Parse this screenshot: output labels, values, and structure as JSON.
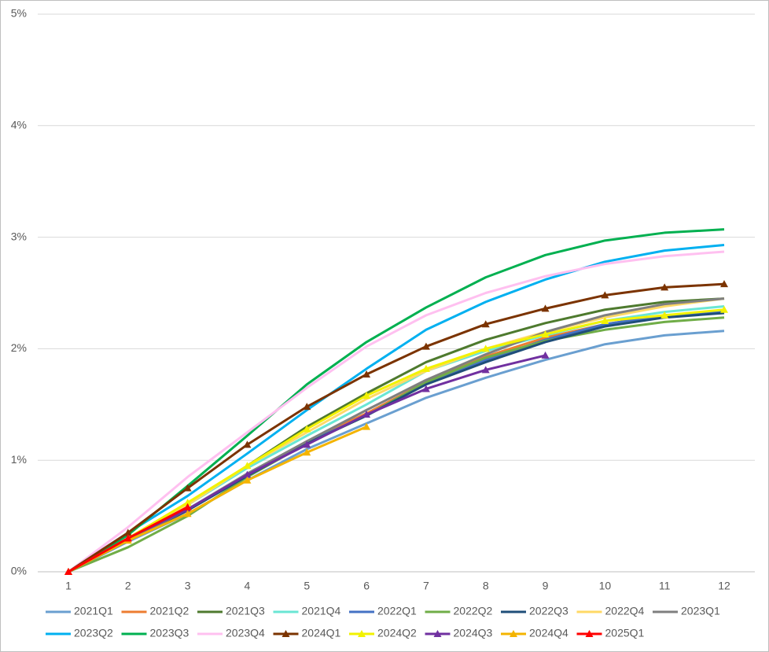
{
  "chart_data": {
    "type": "line",
    "x": [
      1,
      2,
      3,
      4,
      5,
      6,
      7,
      8,
      9,
      10,
      11,
      12
    ],
    "xlim": [
      1,
      12
    ],
    "xticks": [
      1,
      2,
      3,
      4,
      5,
      6,
      7,
      8,
      9,
      10,
      11,
      12
    ],
    "ylim": [
      0,
      5
    ],
    "yticks": [
      {
        "value": 0,
        "label": "0%"
      },
      {
        "value": 1,
        "label": "1%"
      },
      {
        "value": 2,
        "label": "2%"
      },
      {
        "value": 3,
        "label": "3%"
      },
      {
        "value": 4,
        "label": "4%"
      },
      {
        "value": 5,
        "label": "5%"
      }
    ],
    "grid": true,
    "legend": "bottom",
    "series": [
      {
        "name": "2021Q1",
        "color": "#6a9fd0",
        "marker": "none",
        "values": [
          0,
          0.27,
          0.52,
          0.82,
          1.1,
          1.33,
          1.56,
          1.74,
          1.9,
          2.04,
          2.12,
          2.16
        ]
      },
      {
        "name": "2021Q2",
        "color": "#ed7d31",
        "marker": "none",
        "values": [
          0,
          0.28,
          0.55,
          0.87,
          1.17,
          1.42,
          1.7,
          1.93,
          2.1,
          2.22,
          2.3,
          2.33
        ]
      },
      {
        "name": "2021Q3",
        "color": "#4e7a2e",
        "marker": "none",
        "values": [
          0,
          0.3,
          0.6,
          0.95,
          1.3,
          1.6,
          1.88,
          2.08,
          2.23,
          2.35,
          2.42,
          2.45
        ]
      },
      {
        "name": "2021Q4",
        "color": "#6ae6d4",
        "marker": "none",
        "values": [
          0,
          0.3,
          0.6,
          0.93,
          1.22,
          1.5,
          1.8,
          1.98,
          2.12,
          2.25,
          2.33,
          2.38
        ]
      },
      {
        "name": "2022Q1",
        "color": "#4472c4",
        "marker": "none",
        "values": [
          0,
          0.28,
          0.55,
          0.88,
          1.16,
          1.4,
          1.7,
          1.9,
          2.08,
          2.22,
          2.3,
          2.33
        ]
      },
      {
        "name": "2022Q2",
        "color": "#70ad47",
        "marker": "none",
        "values": [
          0,
          0.22,
          0.5,
          0.85,
          1.15,
          1.4,
          1.7,
          1.92,
          2.07,
          2.17,
          2.24,
          2.28
        ]
      },
      {
        "name": "2022Q3",
        "color": "#1f4e79",
        "marker": "none",
        "values": [
          0,
          0.28,
          0.55,
          0.86,
          1.15,
          1.4,
          1.68,
          1.88,
          2.06,
          2.2,
          2.28,
          2.32
        ]
      },
      {
        "name": "2022Q4",
        "color": "#ffd966",
        "marker": "none",
        "values": [
          0,
          0.3,
          0.6,
          0.95,
          1.25,
          1.55,
          1.8,
          2.0,
          2.15,
          2.28,
          2.38,
          2.45
        ]
      },
      {
        "name": "2023Q1",
        "color": "#7f7f7f",
        "marker": "none",
        "values": [
          0,
          0.28,
          0.56,
          0.88,
          1.17,
          1.45,
          1.72,
          1.95,
          2.15,
          2.3,
          2.4,
          2.45
        ]
      },
      {
        "name": "2023Q2",
        "color": "#00b0f0",
        "marker": "none",
        "values": [
          0,
          0.35,
          0.68,
          1.06,
          1.45,
          1.82,
          2.17,
          2.42,
          2.62,
          2.78,
          2.88,
          2.93
        ]
      },
      {
        "name": "2023Q3",
        "color": "#00b050",
        "marker": "none",
        "values": [
          0,
          0.33,
          0.77,
          1.22,
          1.68,
          2.06,
          2.37,
          2.64,
          2.84,
          2.97,
          3.04,
          3.07
        ]
      },
      {
        "name": "2023Q4",
        "color": "#ffc0f0",
        "marker": "none",
        "values": [
          0,
          0.4,
          0.85,
          1.25,
          1.65,
          2.02,
          2.3,
          2.5,
          2.65,
          2.76,
          2.83,
          2.87
        ]
      },
      {
        "name": "2024Q1",
        "color": "#7b3300",
        "marker": "triangle",
        "values": [
          0,
          0.35,
          0.75,
          1.14,
          1.48,
          1.77,
          2.02,
          2.22,
          2.36,
          2.48,
          2.55,
          2.58
        ]
      },
      {
        "name": "2024Q2",
        "color": "#f2f200",
        "marker": "triangle",
        "values": [
          0,
          0.3,
          0.62,
          0.95,
          1.28,
          1.58,
          1.82,
          2.0,
          2.13,
          2.25,
          2.3,
          2.35
        ]
      },
      {
        "name": "2024Q3",
        "color": "#7030a0",
        "marker": "triangle",
        "values": [
          0,
          0.3,
          0.56,
          0.87,
          1.14,
          1.41,
          1.64,
          1.81,
          1.94,
          null,
          null,
          null
        ]
      },
      {
        "name": "2024Q4",
        "color": "#f4b400",
        "marker": "triangle",
        "values": [
          0,
          0.28,
          0.52,
          0.82,
          1.07,
          1.3,
          null,
          null,
          null,
          null,
          null,
          null
        ]
      },
      {
        "name": "2025Q1",
        "color": "#ff0000",
        "marker": "triangle",
        "values": [
          0,
          0.3,
          0.58,
          null,
          null,
          null,
          null,
          null,
          null,
          null,
          null,
          null
        ]
      }
    ]
  }
}
